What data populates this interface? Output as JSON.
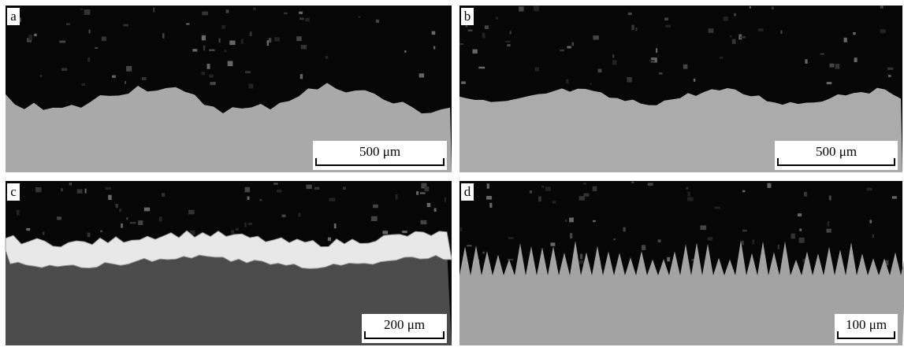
{
  "panels": [
    {
      "label": "a",
      "scale_bar": "500 μm"
    },
    {
      "label": "b",
      "scale_bar": "500 μm"
    },
    {
      "label": "c",
      "scale_bar": "200 μm"
    },
    {
      "label": "d",
      "scale_bar": "100 μm"
    }
  ]
}
